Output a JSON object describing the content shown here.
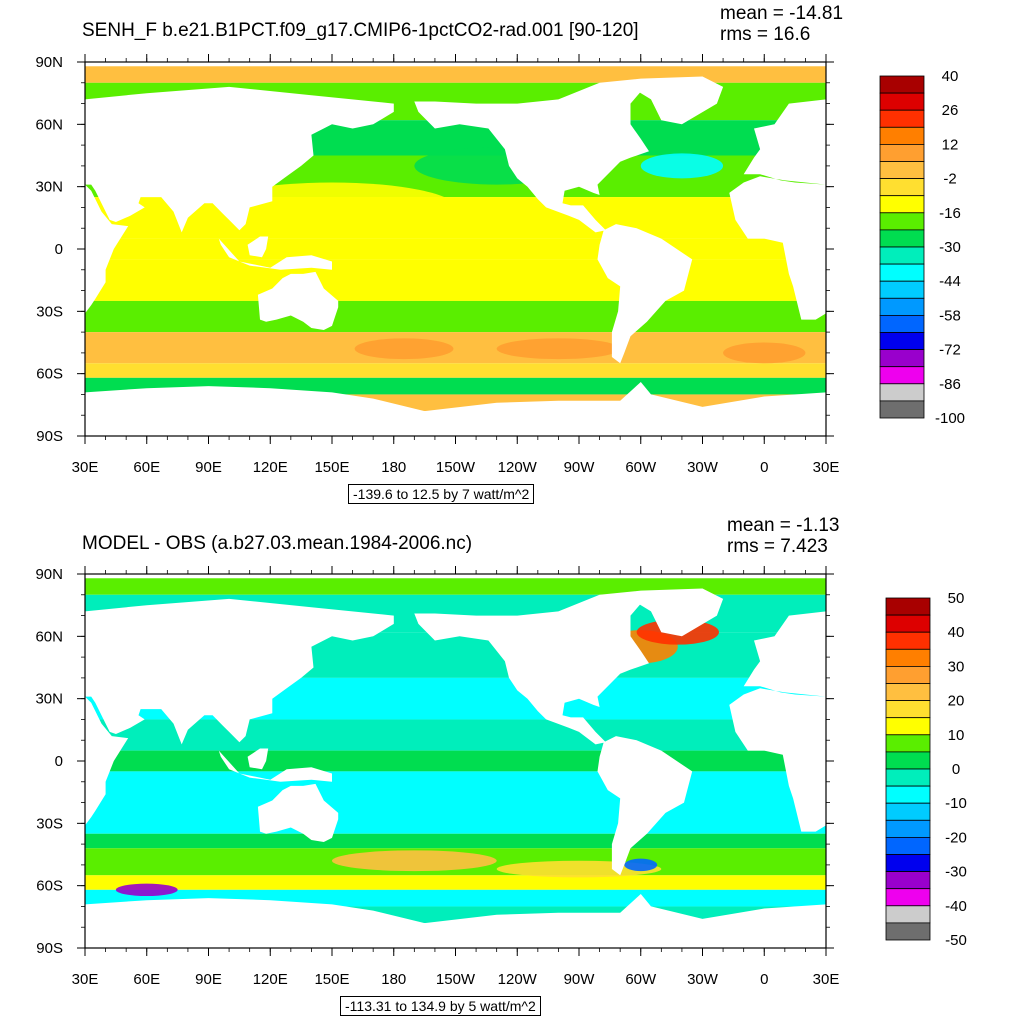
{
  "panels": [
    {
      "title": "SENH_F b.e21.B1PCT.f09_g17.CMIP6-1pctCO2-rad.001 [90-120]",
      "mean": "mean = -14.81",
      "rms": "rms = 16.6",
      "contour_info": "-139.6 to 12.5 by 7 watt/m^2"
    },
    {
      "title": "MODEL - OBS (a.b27.03.mean.1984-2006.nc)",
      "mean": "mean = -1.13",
      "rms": "rms = 7.423",
      "contour_info": "-113.31 to 134.9 by 5 watt/m^2"
    }
  ],
  "chart_data": [
    {
      "type": "heatmap",
      "title": "SENH_F b.e21.B1PCT.f09_g17.CMIP6-1pctCO2-rad.001 [90-120]",
      "stats": {
        "mean": -14.81,
        "rms": 16.6
      },
      "x_ticks": [
        "30E",
        "60E",
        "90E",
        "120E",
        "150E",
        "180",
        "150W",
        "120W",
        "90W",
        "60W",
        "30W",
        "0",
        "30E"
      ],
      "y_ticks": [
        "90N",
        "60N",
        "30N",
        "0",
        "30S",
        "60S",
        "90S"
      ],
      "xlim": [
        30,
        390
      ],
      "ylim": [
        -90,
        90
      ],
      "colorbar": {
        "labels": [
          "40",
          "26",
          "12",
          "-2",
          "-16",
          "-30",
          "-44",
          "-58",
          "-72",
          "-86",
          "-100"
        ],
        "colors": [
          "#a80000",
          "#dd0000",
          "#ff3000",
          "#ff7f00",
          "#ff9f30",
          "#ffbf40",
          "#ffdf30",
          "#ffff00",
          "#5aee00",
          "#00dd50",
          "#00eebb",
          "#00ffff",
          "#00ccff",
          "#0099ff",
          "#0066ff",
          "#0000ee",
          "#9900cc",
          "#ee00ee",
          "#cccccc",
          "#6e6e6e"
        ]
      },
      "contour_info": "-139.6 to 12.5 by 7 watt/m^2"
    },
    {
      "type": "heatmap",
      "title": "MODEL - OBS (a.b27.03.mean.1984-2006.nc)",
      "stats": {
        "mean": -1.13,
        "rms": 7.423
      },
      "x_ticks": [
        "30E",
        "60E",
        "90E",
        "120E",
        "150E",
        "180",
        "150W",
        "120W",
        "90W",
        "60W",
        "30W",
        "0",
        "30E"
      ],
      "y_ticks": [
        "90N",
        "60N",
        "30N",
        "0",
        "30S",
        "60S",
        "90S"
      ],
      "xlim": [
        30,
        390
      ],
      "ylim": [
        -90,
        90
      ],
      "colorbar": {
        "labels": [
          "50",
          "40",
          "30",
          "20",
          "10",
          "0",
          "-10",
          "-20",
          "-30",
          "-40",
          "-50"
        ],
        "colors": [
          "#a80000",
          "#dd0000",
          "#ff3000",
          "#ff7f00",
          "#ff9f30",
          "#ffbf40",
          "#ffdf30",
          "#ffff00",
          "#5aee00",
          "#00dd50",
          "#00eebb",
          "#00ffff",
          "#00ccff",
          "#0099ff",
          "#0066ff",
          "#0000ee",
          "#9900cc",
          "#ee00ee",
          "#cccccc",
          "#6e6e6e"
        ]
      },
      "contour_info": "-113.31 to 134.9 by 5 watt/m^2"
    }
  ]
}
